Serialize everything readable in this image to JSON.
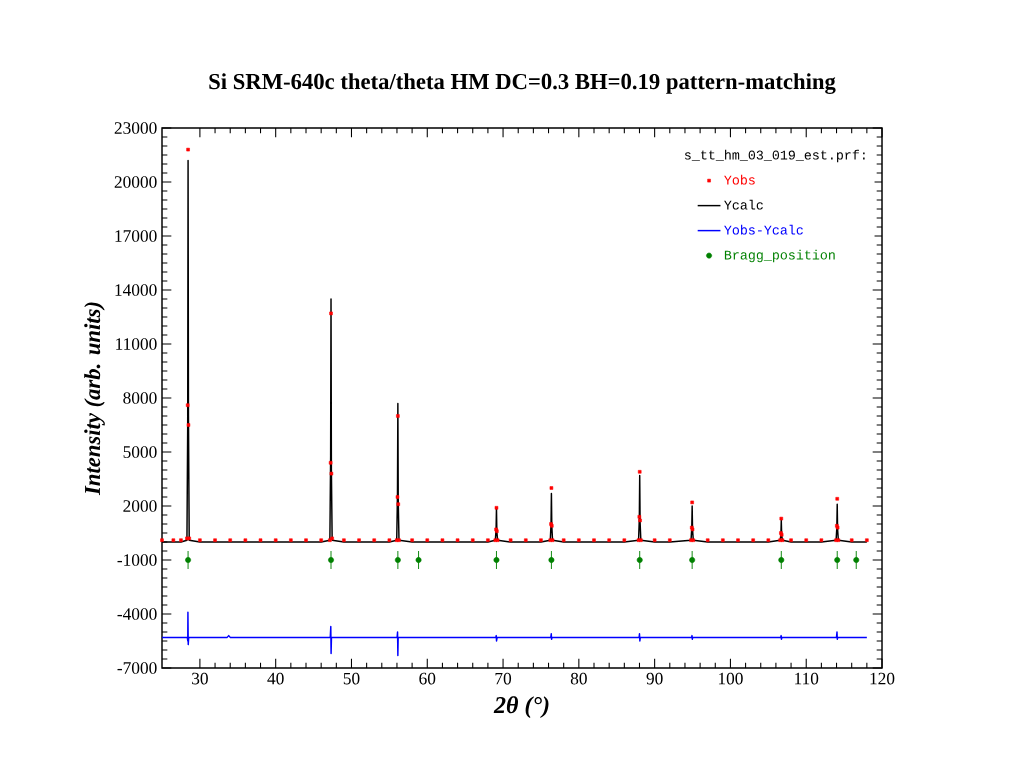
{
  "chart_data": {
    "type": "scatter",
    "title": "Si SRM-640c theta/theta HM DC=0.3 BH=0.19 pattern-matching",
    "xlabel": "2θ (°)",
    "ylabel": "Intensity (arb. units)",
    "legend_title": "s_tt_hm_03_019_est.prf:",
    "legend": "top right",
    "xlim": [
      25,
      120
    ],
    "xticks": [
      30,
      40,
      50,
      60,
      70,
      80,
      90,
      100,
      110,
      120
    ],
    "ylim": [
      -7000,
      23000
    ],
    "yticks": [
      -7000,
      -4000,
      -1000,
      2000,
      5000,
      8000,
      11000,
      14000,
      17000,
      20000,
      23000
    ],
    "series": [
      {
        "name": "Yobs",
        "marker": "square",
        "color": "#ff0000",
        "x": [
          25,
          26.5,
          27.5,
          28.29,
          28.39,
          28.44,
          28.49,
          28.59,
          30,
          32,
          34,
          36,
          38,
          40,
          42,
          44,
          46,
          47.15,
          47.25,
          47.3,
          47.35,
          47.45,
          49,
          51,
          53,
          55,
          55.97,
          56.07,
          56.12,
          56.17,
          56.27,
          58,
          60,
          62,
          64,
          66,
          68,
          68.98,
          69.08,
          69.13,
          69.18,
          69.28,
          71,
          73,
          75,
          76.23,
          76.33,
          76.38,
          76.43,
          76.53,
          78,
          80,
          82,
          84,
          86,
          87.88,
          87.98,
          88.03,
          88.08,
          88.18,
          90,
          92,
          94.8,
          94.9,
          94.95,
          95.0,
          95.1,
          97,
          99,
          101,
          103,
          105,
          106.56,
          106.66,
          106.71,
          106.76,
          106.86,
          108,
          110,
          112,
          113.94,
          114.04,
          114.09,
          114.14,
          114.24,
          116,
          118
        ],
        "values": [
          100,
          100,
          100,
          200,
          7600,
          21800,
          6500,
          200,
          100,
          100,
          100,
          100,
          100,
          100,
          100,
          100,
          100,
          100,
          4400,
          12700,
          3800,
          200,
          100,
          100,
          100,
          100,
          100,
          2500,
          7000,
          2100,
          100,
          100,
          100,
          100,
          100,
          100,
          100,
          100,
          700,
          1900,
          600,
          100,
          100,
          100,
          100,
          100,
          1000,
          3000,
          900,
          100,
          100,
          100,
          100,
          100,
          100,
          100,
          1400,
          3900,
          1200,
          100,
          100,
          100,
          100,
          800,
          2200,
          700,
          100,
          100,
          100,
          100,
          100,
          100,
          100,
          500,
          1300,
          400,
          100,
          100,
          100,
          100,
          100,
          900,
          2400,
          800,
          100,
          100,
          100
        ]
      },
      {
        "name": "Ycalc",
        "type": "line",
        "marker": "none",
        "line_style": "solid",
        "color": "#000000",
        "x": [
          25,
          26.5,
          27.5,
          28.29,
          28.39,
          28.44,
          28.49,
          28.59,
          30,
          32,
          34,
          36,
          38,
          40,
          42,
          44,
          46,
          47.15,
          47.25,
          47.3,
          47.35,
          47.45,
          49,
          51,
          53,
          55,
          55.97,
          56.07,
          56.12,
          56.17,
          56.27,
          58,
          60,
          62,
          64,
          66,
          68,
          68.98,
          69.08,
          69.13,
          69.18,
          69.28,
          71,
          73,
          75,
          76.23,
          76.33,
          76.38,
          76.43,
          76.53,
          78,
          80,
          82,
          84,
          86,
          87.88,
          87.98,
          88.03,
          88.08,
          88.18,
          90,
          92,
          94.8,
          94.9,
          94.95,
          95.0,
          95.1,
          97,
          99,
          101,
          103,
          105,
          106.56,
          106.66,
          106.71,
          106.76,
          106.86,
          108,
          110,
          112,
          113.94,
          114.04,
          114.09,
          114.14,
          114.24,
          116,
          118
        ],
        "values": [
          0,
          0,
          0,
          100,
          6500,
          21200,
          7000,
          100,
          0,
          0,
          0,
          0,
          0,
          0,
          0,
          0,
          0,
          100,
          4800,
          13500,
          4000,
          100,
          0,
          0,
          0,
          0,
          100,
          2700,
          7700,
          2300,
          100,
          0,
          0,
          0,
          0,
          0,
          0,
          100,
          700,
          1900,
          600,
          100,
          0,
          0,
          0,
          100,
          1000,
          2700,
          900,
          100,
          0,
          0,
          0,
          0,
          0,
          100,
          1300,
          3700,
          1100,
          100,
          0,
          0,
          100,
          800,
          2000,
          700,
          100,
          0,
          0,
          0,
          0,
          0,
          100,
          400,
          1200,
          400,
          100,
          0,
          0,
          0,
          100,
          800,
          2100,
          700,
          100,
          0,
          0
        ]
      },
      {
        "name": "Yobs-Ycalc",
        "type": "line",
        "marker": "none",
        "line_style": "solid",
        "color": "#0000ff",
        "x": [
          25,
          28.34,
          28.4,
          28.42,
          28.46,
          28.52,
          33.6,
          33.8,
          34.0,
          47.2,
          47.27,
          47.31,
          47.36,
          47.42,
          56.02,
          56.08,
          56.12,
          56.16,
          56.22,
          69.04,
          69.1,
          69.14,
          69.22,
          76.3,
          76.36,
          76.4,
          76.46,
          87.95,
          88.0,
          88.05,
          88.11,
          94.88,
          94.93,
          94.97,
          95.03,
          106.63,
          106.69,
          106.73,
          106.8,
          113.99,
          114.06,
          114.1,
          114.16,
          118
        ],
        "values": [
          -5300,
          -5300,
          -5500,
          -3900,
          -5700,
          -5300,
          -5300,
          -5200,
          -5300,
          -5300,
          -4700,
          -6200,
          -5300,
          -5300,
          -5300,
          -5000,
          -6300,
          -5300,
          -5300,
          -5300,
          -5200,
          -5500,
          -5300,
          -5300,
          -5100,
          -5400,
          -5300,
          -5300,
          -5100,
          -5500,
          -5300,
          -5300,
          -5200,
          -5400,
          -5300,
          -5300,
          -5200,
          -5400,
          -5300,
          -5300,
          -5000,
          -5400,
          -5300,
          -5300
        ]
      },
      {
        "name": "Bragg_position",
        "marker": "none",
        "color": "#008000",
        "errors": [
          500,
          500,
          500,
          500,
          500,
          500,
          500,
          500,
          500,
          500,
          500
        ],
        "x": [
          28.44,
          47.3,
          56.12,
          58.85,
          69.13,
          76.38,
          88.03,
          94.95,
          106.71,
          114.09,
          116.6
        ],
        "values": [
          -1000,
          -1000,
          -1000,
          -1000,
          -1000,
          -1000,
          -1000,
          -1000,
          -1000,
          -1000,
          -1000
        ]
      }
    ]
  }
}
